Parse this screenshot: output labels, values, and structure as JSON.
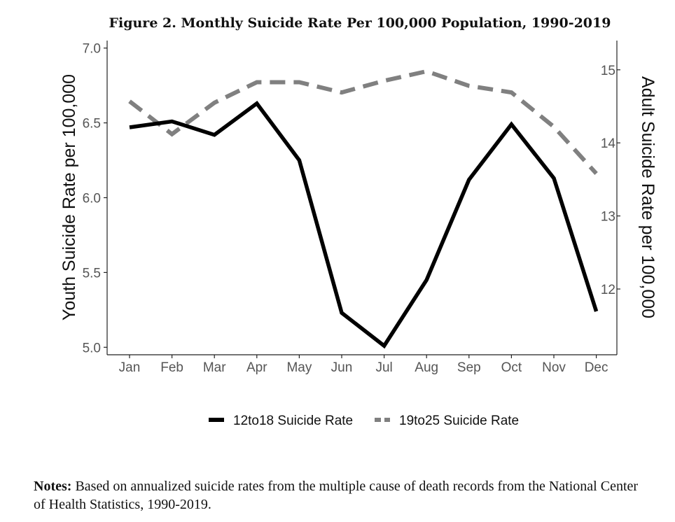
{
  "chart_data": {
    "type": "line",
    "title": "Figure 2. Monthly Suicide Rate Per 100,000 Population, 1990-2019",
    "categories": [
      "Jan",
      "Feb",
      "Mar",
      "Apr",
      "May",
      "Jun",
      "Jul",
      "Aug",
      "Sep",
      "Oct",
      "Nov",
      "Dec"
    ],
    "ylabel_left": "Youth Suicide Rate per 100,000",
    "ylabel_right": "Adult Suicide Rate per 100,000",
    "ylim_left": [
      4.95,
      7.05
    ],
    "yticks_left": [
      "5.0",
      "5.5",
      "6.0",
      "6.5",
      "7.0"
    ],
    "ylim_right": [
      11.1,
      15.4
    ],
    "yticks_right": [
      "12",
      "13",
      "14",
      "15"
    ],
    "series": [
      {
        "name": "12to18 Suicide Rate",
        "axis": "left",
        "style": "solid",
        "color": "#000000",
        "values": [
          6.47,
          6.51,
          6.42,
          6.63,
          6.25,
          5.23,
          5.01,
          5.45,
          6.12,
          6.49,
          6.13,
          5.24
        ]
      },
      {
        "name": "19to25 Suicide Rate",
        "axis": "right",
        "style": "dashed",
        "color": "#808080",
        "values": [
          14.57,
          14.12,
          14.55,
          14.83,
          14.83,
          14.69,
          14.85,
          14.98,
          14.78,
          14.69,
          14.22,
          13.58
        ]
      }
    ],
    "legend_position": "bottom",
    "grid": false
  },
  "notes": {
    "label": "Notes:",
    "text": " Based on annualized suicide rates from the multiple cause of death records from the National Center of Health Statistics, 1990-2019."
  }
}
